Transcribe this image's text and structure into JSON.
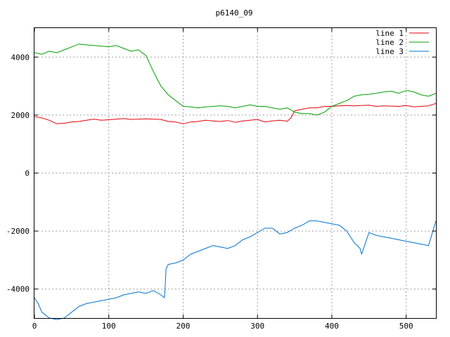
{
  "chart_data": {
    "type": "line",
    "title": "p6140_09",
    "xlabel": "",
    "ylabel": "",
    "xlim": [
      0,
      540
    ],
    "ylim": [
      -5000,
      5000
    ],
    "x_ticks": [
      "0",
      "100",
      "200",
      "300",
      "400",
      "500"
    ],
    "y_ticks": [
      "-4000",
      "-2000",
      "0",
      "2000",
      "4000"
    ],
    "grid": true,
    "legend_position": "top-right",
    "series": [
      {
        "name": "line 1",
        "color": "#e8000b",
        "x": [
          0,
          10,
          20,
          30,
          40,
          50,
          60,
          70,
          80,
          90,
          100,
          110,
          120,
          130,
          140,
          150,
          160,
          170,
          180,
          190,
          200,
          210,
          220,
          230,
          240,
          250,
          260,
          270,
          280,
          290,
          300,
          310,
          320,
          330,
          340,
          345,
          350,
          360,
          370,
          380,
          390,
          400,
          410,
          420,
          430,
          440,
          450,
          460,
          470,
          480,
          490,
          500,
          510,
          520,
          530,
          540
        ],
        "values": [
          1950,
          1900,
          1820,
          1700,
          1720,
          1760,
          1780,
          1820,
          1860,
          1820,
          1840,
          1860,
          1880,
          1850,
          1860,
          1870,
          1860,
          1850,
          1780,
          1760,
          1700,
          1760,
          1780,
          1820,
          1800,
          1780,
          1810,
          1750,
          1800,
          1820,
          1850,
          1760,
          1800,
          1820,
          1790,
          1900,
          2150,
          2200,
          2250,
          2250,
          2300,
          2300,
          2320,
          2330,
          2320,
          2330,
          2340,
          2300,
          2320,
          2310,
          2300,
          2330,
          2280,
          2300,
          2320,
          2400
        ]
      },
      {
        "name": "line 2",
        "color": "#00a000",
        "x": [
          0,
          10,
          20,
          30,
          40,
          50,
          60,
          70,
          80,
          90,
          100,
          110,
          120,
          130,
          140,
          150,
          160,
          170,
          180,
          190,
          200,
          210,
          220,
          230,
          240,
          250,
          260,
          270,
          280,
          290,
          300,
          310,
          320,
          330,
          340,
          350,
          360,
          370,
          380,
          390,
          400,
          410,
          420,
          430,
          440,
          450,
          460,
          470,
          480,
          490,
          500,
          510,
          520,
          530,
          540
        ],
        "values": [
          4150,
          4100,
          4200,
          4150,
          4250,
          4350,
          4450,
          4420,
          4400,
          4380,
          4350,
          4400,
          4300,
          4200,
          4250,
          4050,
          3500,
          3000,
          2700,
          2500,
          2300,
          2280,
          2250,
          2280,
          2300,
          2320,
          2300,
          2250,
          2300,
          2350,
          2300,
          2300,
          2250,
          2200,
          2250,
          2100,
          2050,
          2050,
          2000,
          2100,
          2300,
          2400,
          2500,
          2650,
          2700,
          2720,
          2750,
          2800,
          2820,
          2750,
          2850,
          2800,
          2700,
          2650,
          2750
        ]
      },
      {
        "name": "line 3",
        "color": "#0070d0",
        "x": [
          0,
          5,
          10,
          20,
          30,
          40,
          50,
          60,
          70,
          80,
          90,
          100,
          110,
          120,
          130,
          140,
          150,
          160,
          170,
          175,
          177,
          180,
          190,
          200,
          210,
          220,
          230,
          240,
          250,
          260,
          270,
          280,
          290,
          300,
          310,
          320,
          330,
          340,
          350,
          360,
          370,
          380,
          390,
          400,
          410,
          420,
          430,
          438,
          440,
          450,
          460,
          470,
          480,
          490,
          500,
          510,
          520,
          530,
          540
        ],
        "values": [
          -4300,
          -4500,
          -4800,
          -5000,
          -5050,
          -5000,
          -4800,
          -4600,
          -4500,
          -4450,
          -4400,
          -4350,
          -4300,
          -4200,
          -4150,
          -4100,
          -4150,
          -4050,
          -4200,
          -4300,
          -3300,
          -3150,
          -3100,
          -3000,
          -2800,
          -2700,
          -2600,
          -2500,
          -2550,
          -2600,
          -2500,
          -2300,
          -2200,
          -2050,
          -1900,
          -1900,
          -2100,
          -2050,
          -1900,
          -1800,
          -1650,
          -1650,
          -1700,
          -1750,
          -1800,
          -2000,
          -2400,
          -2600,
          -2800,
          -2050,
          -2150,
          -2200,
          -2250,
          -2300,
          -2350,
          -2400,
          -2450,
          -2500,
          -1650
        ]
      }
    ]
  }
}
